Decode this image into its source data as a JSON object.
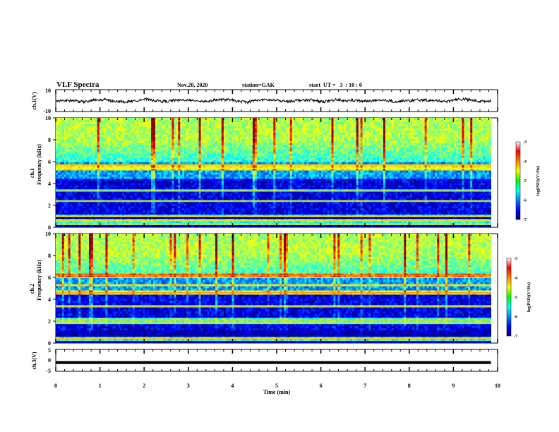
{
  "header": {
    "title": "VLF Spectra",
    "date": "Nov.20, 2020",
    "station": "station=GAK",
    "start": "start  UT =   3  : 10 : 0"
  },
  "chart_data": [
    {
      "type": "line",
      "name": "ch1-waveform",
      "ylabel": "ch.1(V)",
      "ylim": [
        -10,
        10
      ],
      "yticks": [
        "10",
        "-10"
      ],
      "xlim": [
        0,
        10
      ],
      "mean_level": 0
    },
    {
      "type": "heatmap",
      "name": "ch1-spectrogram",
      "ylabel_line1": "ch.1",
      "ylabel_line2": "Frequency (kHz)",
      "ylim": [
        0,
        10
      ],
      "yticks": [
        "0",
        "2",
        "4",
        "6",
        "8",
        "10"
      ],
      "xlim": [
        0,
        9.85
      ],
      "colorbar": {
        "label": "log(PSD)(V²/Hz)",
        "ticks": [
          "-3",
          "-4",
          "-5",
          "-6",
          "-7"
        ],
        "range": [
          -7,
          -3
        ]
      },
      "bands_khz": [
        0.3,
        0.6,
        1.0,
        2.4,
        3.3,
        5.4,
        5.7
      ]
    },
    {
      "type": "heatmap",
      "name": "ch2-spectrogram",
      "ylabel_line1": "ch.2",
      "ylabel_line2": "Frequency (kHz)",
      "ylim": [
        0,
        10
      ],
      "yticks": [
        "0",
        "2",
        "4",
        "6",
        "8",
        "10"
      ],
      "xlim": [
        0,
        9.85
      ],
      "colorbar": {
        "label": "log(PSD)(V²/Hz)",
        "ticks": [
          "-3",
          "-4",
          "-5",
          "-6",
          "-7"
        ],
        "range": [
          -7,
          -3
        ]
      },
      "bands_khz": [
        0.4,
        1.8,
        2.1,
        3.3,
        4.6,
        5.3,
        6.0,
        6.2
      ]
    },
    {
      "type": "line",
      "name": "ch3-waveform",
      "ylabel": "ch.3(V)",
      "ylim": [
        -5,
        5
      ],
      "yticks": [
        "5",
        "0",
        "-5"
      ],
      "xlim": [
        0,
        10
      ],
      "mean_level": -1
    }
  ],
  "xaxis": {
    "label": "Time (min)",
    "ticks": [
      "0",
      "1",
      "2",
      "3",
      "4",
      "5",
      "6",
      "7",
      "8",
      "9",
      "10"
    ]
  },
  "colors": {
    "jet": [
      "#00007f",
      "#0000ff",
      "#00ffff",
      "#00ff00",
      "#ffff00",
      "#ff0000",
      "#7f0000"
    ]
  }
}
